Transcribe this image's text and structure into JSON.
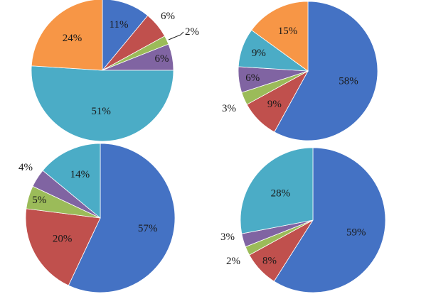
{
  "palette": {
    "blue": "#4472C4",
    "red": "#C0504D",
    "green": "#9BBB59",
    "purple": "#8064A2",
    "teal": "#4BACC6",
    "orange": "#F79646"
  },
  "chart_data": [
    {
      "type": "pie",
      "position": "top-left",
      "values": [
        11,
        6,
        2,
        6,
        51,
        24
      ],
      "labels": [
        "11%",
        "6%",
        "2%",
        "6%",
        "51%",
        "24%"
      ],
      "colors": [
        "blue",
        "red",
        "green",
        "purple",
        "teal",
        "orange"
      ]
    },
    {
      "type": "pie",
      "position": "top-right",
      "values": [
        58,
        9,
        3,
        6,
        9,
        15
      ],
      "labels": [
        "58%",
        "9%",
        "3%",
        "6%",
        "9%",
        "15%"
      ],
      "colors": [
        "blue",
        "red",
        "green",
        "purple",
        "teal",
        "orange"
      ]
    },
    {
      "type": "pie",
      "position": "bottom-left",
      "values": [
        57,
        20,
        5,
        4,
        14
      ],
      "labels": [
        "57%",
        "20%",
        "5%",
        "4%",
        "14%"
      ],
      "colors": [
        "blue",
        "red",
        "green",
        "purple",
        "teal"
      ]
    },
    {
      "type": "pie",
      "position": "bottom-right",
      "values": [
        59,
        8,
        2,
        3,
        28
      ],
      "labels": [
        "59%",
        "8%",
        "2%",
        "3%",
        "28%"
      ],
      "colors": [
        "blue",
        "red",
        "green",
        "purple",
        "teal"
      ]
    }
  ]
}
